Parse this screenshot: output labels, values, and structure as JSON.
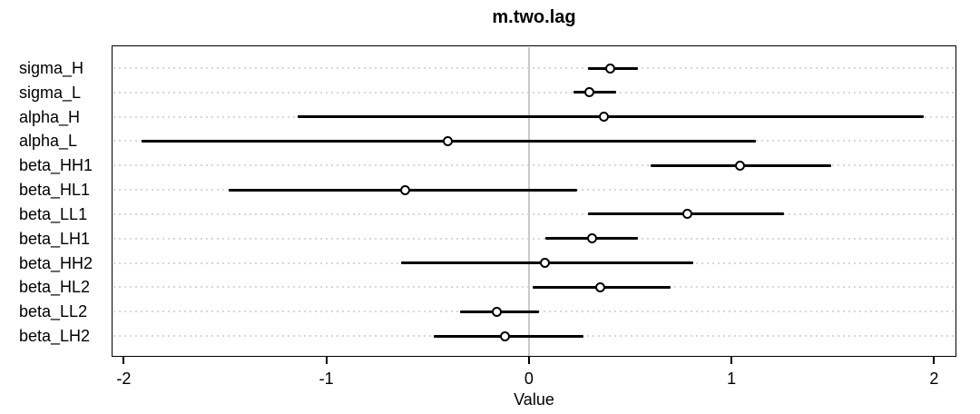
{
  "chart_data": {
    "type": "scatter",
    "subtype": "coefficient-dot-interval-plot",
    "title": "m.two.lag",
    "xlabel": "Value",
    "ylabel": "",
    "xlim": [
      -2.06,
      2.11
    ],
    "xticks": [
      -2,
      -1,
      0,
      1,
      2
    ],
    "xtick_labels": [
      "-2",
      "-1",
      "0",
      "1",
      "2"
    ],
    "grid": "dotted horizontal gridline per category; solid light vertical reference line at x=0",
    "legend_position": "none",
    "categories": [
      "sigma_H",
      "sigma_L",
      "alpha_H",
      "alpha_L",
      "beta_HH1",
      "beta_HL1",
      "beta_LL1",
      "beta_LH1",
      "beta_HH2",
      "beta_HL2",
      "beta_LL2",
      "beta_LH2"
    ],
    "points": [
      {
        "label": "sigma_H",
        "estimate": 0.4,
        "ci_low": 0.29,
        "ci_high": 0.54
      },
      {
        "label": "sigma_L",
        "estimate": 0.3,
        "ci_low": 0.22,
        "ci_high": 0.43
      },
      {
        "label": "alpha_H",
        "estimate": 0.37,
        "ci_low": -1.14,
        "ci_high": 1.95
      },
      {
        "label": "alpha_L",
        "estimate": -0.4,
        "ci_low": -1.91,
        "ci_high": 1.12
      },
      {
        "label": "beta_HH1",
        "estimate": 1.04,
        "ci_low": 0.6,
        "ci_high": 1.49
      },
      {
        "label": "beta_HL1",
        "estimate": -0.61,
        "ci_low": -1.48,
        "ci_high": 0.24
      },
      {
        "label": "beta_LL1",
        "estimate": 0.78,
        "ci_low": 0.29,
        "ci_high": 1.26
      },
      {
        "label": "beta_LH1",
        "estimate": 0.31,
        "ci_low": 0.08,
        "ci_high": 0.54
      },
      {
        "label": "beta_HH2",
        "estimate": 0.08,
        "ci_low": -0.63,
        "ci_high": 0.81
      },
      {
        "label": "beta_HL2",
        "estimate": 0.35,
        "ci_low": 0.02,
        "ci_high": 0.7
      },
      {
        "label": "beta_LL2",
        "estimate": -0.16,
        "ci_low": -0.34,
        "ci_high": 0.05
      },
      {
        "label": "beta_LH2",
        "estimate": -0.12,
        "ci_low": -0.47,
        "ci_high": 0.27
      }
    ],
    "colors": {
      "line": "#000000",
      "point_stroke": "#000000",
      "point_fill": "#ffffff",
      "grid": "#d7d7d7",
      "zero_line": "#c9c9c9",
      "box": "#000000",
      "text": "#000000",
      "background": "#ffffff"
    }
  }
}
